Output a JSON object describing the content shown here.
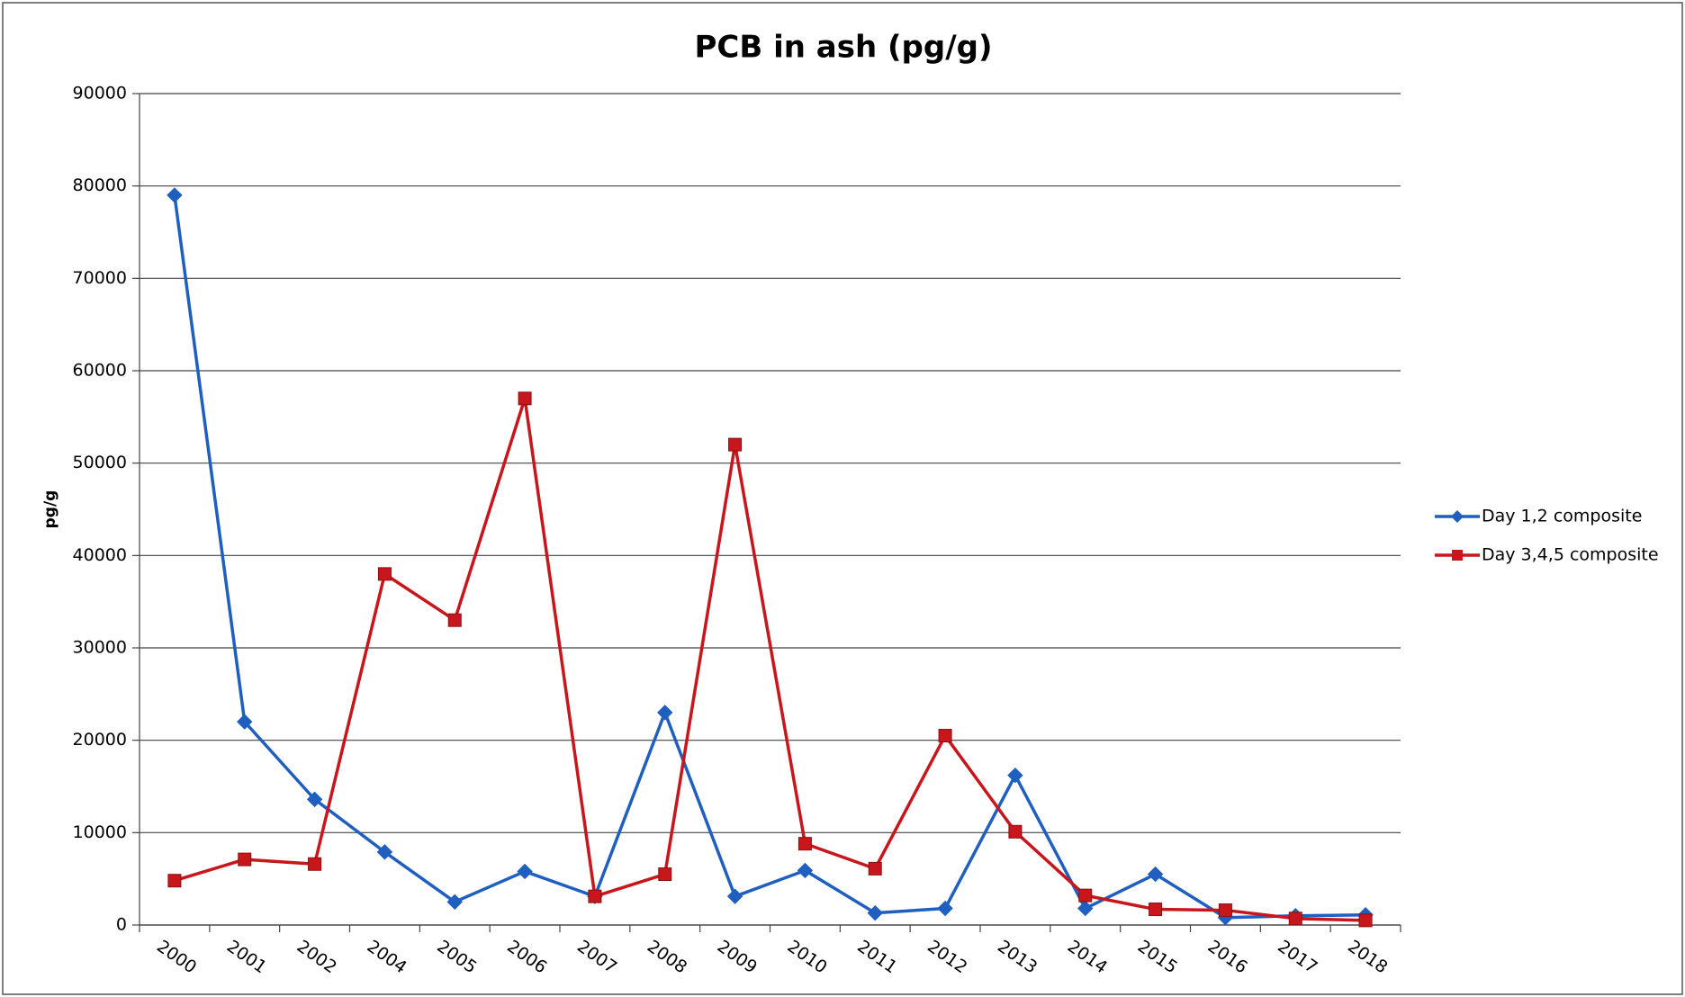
{
  "chart_data": {
    "type": "line",
    "title": "PCB in ash  (pg/g)",
    "y_label": "pg/g",
    "categories": [
      "2000",
      "2001",
      "2002",
      "2004",
      "2005",
      "2006",
      "2007",
      "2008",
      "2009",
      "2010",
      "2011",
      "2012",
      "2013",
      "2014",
      "2015",
      "2016",
      "2017",
      "2018"
    ],
    "series": [
      {
        "name": "Day 1,2 composite",
        "color": "#1f5fbf",
        "marker": "diamond",
        "values": [
          79000,
          22000,
          13600,
          7900,
          2500,
          5800,
          3100,
          23000,
          3100,
          5900,
          1300,
          1800,
          16200,
          1800,
          5500,
          800,
          1000,
          1100
        ]
      },
      {
        "name": "Day 3,4,5 composite",
        "color": "#c8161d",
        "marker": "square",
        "values": [
          4800,
          7100,
          6600,
          38000,
          33000,
          57000,
          3100,
          5500,
          52000,
          8800,
          6100,
          20500,
          10100,
          3200,
          1700,
          1600,
          700,
          500
        ]
      }
    ],
    "ylim": [
      0,
      90000
    ],
    "yticks": [
      0,
      10000,
      20000,
      30000,
      40000,
      50000,
      60000,
      70000,
      80000,
      90000
    ],
    "grid": true,
    "legend": "right"
  }
}
